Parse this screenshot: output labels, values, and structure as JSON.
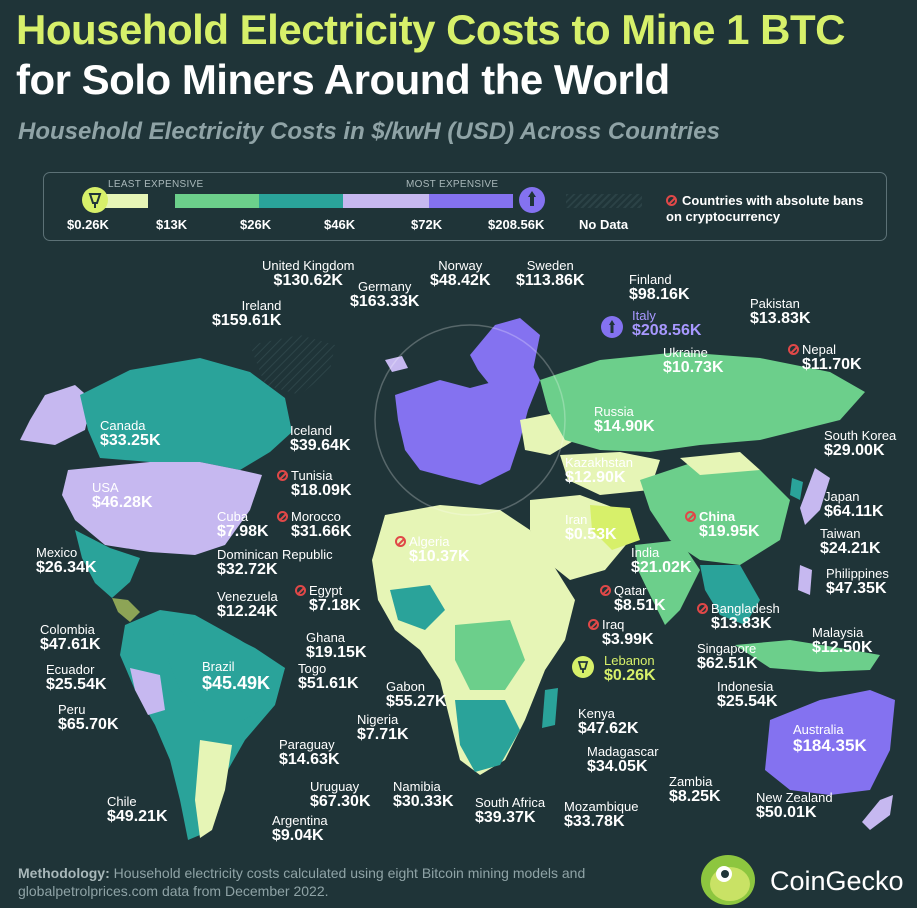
{
  "title_line1": "Household Electricity Costs to Mine 1 BTC",
  "title_line2": "for Solo Miners Around the World",
  "subtitle": "Household Electricity Costs in $/kwH (USD) Across Countries",
  "legend": {
    "least_label": "LEAST EXPENSIVE",
    "most_label": "MOST EXPENSIVE",
    "ticks": [
      "$0.26K",
      "$13K",
      "$26K",
      "$46K",
      "$72K",
      "$208.56K"
    ],
    "colors": [
      "#d7f06a",
      "#e6f5b6",
      "#6ccf8b",
      "#2aa39a",
      "#c6b8f0",
      "#8472f0"
    ],
    "no_data_label": "No Data",
    "ban_label": "Countries with absolute bans on cryptocurrency"
  },
  "countries": [
    {
      "name": "United Kingdom",
      "value": "$130.62K"
    },
    {
      "name": "Germany",
      "value": "$163.33K"
    },
    {
      "name": "Norway",
      "value": "$48.42K"
    },
    {
      "name": "Sweden",
      "value": "$113.86K"
    },
    {
      "name": "Finland",
      "value": "$98.16K"
    },
    {
      "name": "Ireland",
      "value": "$159.61K"
    },
    {
      "name": "Italy",
      "value": "$208.56K"
    },
    {
      "name": "Pakistan",
      "value": "$13.83K"
    },
    {
      "name": "Ukraine",
      "value": "$10.73K"
    },
    {
      "name": "Nepal",
      "value": "$11.70K"
    },
    {
      "name": "Canada",
      "value": "$33.25K"
    },
    {
      "name": "Russia",
      "value": "$14.90K"
    },
    {
      "name": "Iceland",
      "value": "$39.64K"
    },
    {
      "name": "South Korea",
      "value": "$29.00K"
    },
    {
      "name": "Tunisia",
      "value": "$18.09K"
    },
    {
      "name": "Kazakhstan",
      "value": "$12.90K"
    },
    {
      "name": "USA",
      "value": "$46.28K"
    },
    {
      "name": "Japan",
      "value": "$64.11K"
    },
    {
      "name": "Cuba",
      "value": "$7.98K"
    },
    {
      "name": "Morocco",
      "value": "$31.66K"
    },
    {
      "name": "China",
      "value": "$19.95K"
    },
    {
      "name": "Iran",
      "value": "$0.53K"
    },
    {
      "name": "Taiwan",
      "value": "$24.21K"
    },
    {
      "name": "Algeria",
      "value": "$10.37K"
    },
    {
      "name": "Mexico",
      "value": "$26.34K"
    },
    {
      "name": "Dominican Republic",
      "value": "$32.72K"
    },
    {
      "name": "India",
      "value": "$21.02K"
    },
    {
      "name": "Philippines",
      "value": "$47.35K"
    },
    {
      "name": "Venezuela",
      "value": "$12.24K"
    },
    {
      "name": "Egypt",
      "value": "$7.18K"
    },
    {
      "name": "Qatar",
      "value": "$8.51K"
    },
    {
      "name": "Bangladesh",
      "value": "$13.83K"
    },
    {
      "name": "Colombia",
      "value": "$47.61K"
    },
    {
      "name": "Iraq",
      "value": "$3.99K"
    },
    {
      "name": "Ghana",
      "value": "$19.15K"
    },
    {
      "name": "Malaysia",
      "value": "$12.50K"
    },
    {
      "name": "Singapore",
      "value": "$62.51K"
    },
    {
      "name": "Lebanon",
      "value": "$0.26K"
    },
    {
      "name": "Ecuador",
      "value": "$25.54K"
    },
    {
      "name": "Brazil",
      "value": "$45.49K"
    },
    {
      "name": "Togo",
      "value": "$51.61K"
    },
    {
      "name": "Gabon",
      "value": "$55.27K"
    },
    {
      "name": "Indonesia",
      "value": "$25.54K"
    },
    {
      "name": "Peru",
      "value": "$65.70K"
    },
    {
      "name": "Nigeria",
      "value": "$7.71K"
    },
    {
      "name": "Kenya",
      "value": "$47.62K"
    },
    {
      "name": "Australia",
      "value": "$184.35K"
    },
    {
      "name": "Paraguay",
      "value": "$14.63K"
    },
    {
      "name": "Madagascar",
      "value": "$34.05K"
    },
    {
      "name": "Uruguay",
      "value": "$67.30K"
    },
    {
      "name": "Zambia",
      "value": "$8.25K"
    },
    {
      "name": "Chile",
      "value": "$49.21K"
    },
    {
      "name": "Namibia",
      "value": "$30.33K"
    },
    {
      "name": "South Africa",
      "value": "$39.37K"
    },
    {
      "name": "Mozambique",
      "value": "$33.78K"
    },
    {
      "name": "New Zealand",
      "value": "$50.01K"
    },
    {
      "name": "Argentina",
      "value": "$9.04K"
    }
  ],
  "methodology_label": "Methodology:",
  "methodology_text": " Household electricity costs calculated using eight Bitcoin mining models and globalpetrolprices.com data from December 2022.",
  "brand": "CoinGecko"
}
